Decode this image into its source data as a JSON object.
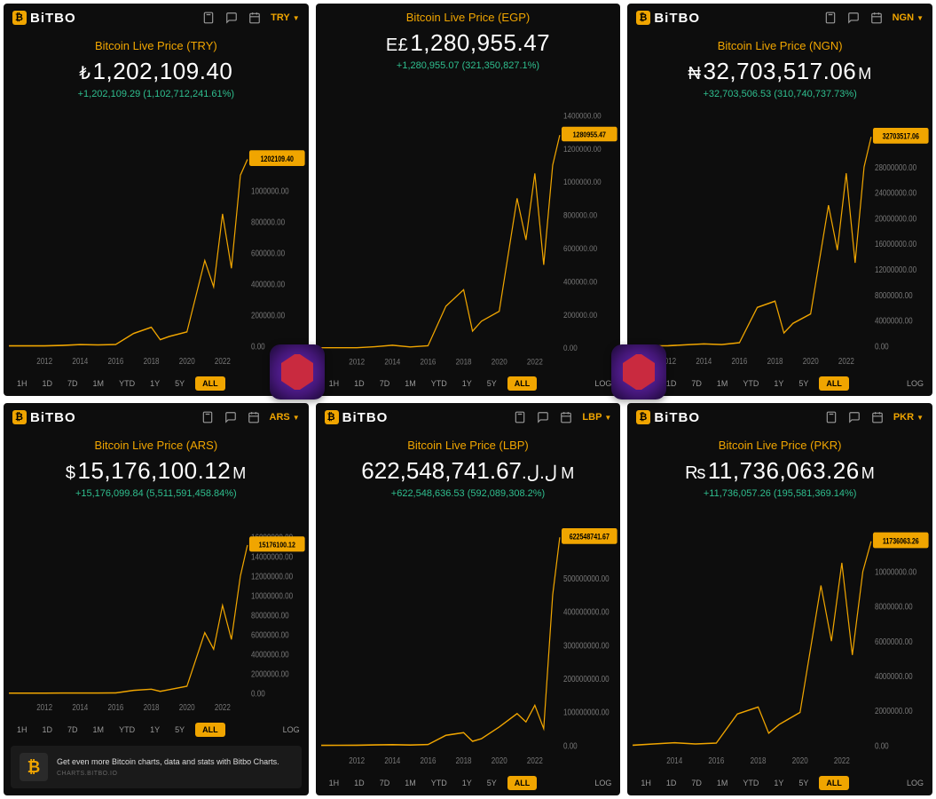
{
  "brand": "BiTBO",
  "colors": {
    "accent": "#f0a500",
    "positive": "#2fbf8f",
    "bg": "#0d0d0d",
    "line": "#f0a500",
    "tick": "#777777"
  },
  "ranges": [
    "1H",
    "1D",
    "7D",
    "1M",
    "YTD",
    "1Y",
    "5Y",
    "ALL"
  ],
  "active_range": "ALL",
  "log_label": "LOG",
  "promo": {
    "text": "Get even more Bitcoin charts, data and stats with Bitbo Charts.",
    "sub": "CHARTS.BITBO.IO"
  },
  "panels": [
    {
      "show_topbar": true,
      "currency_btn": "TRY",
      "title": "Bitcoin Live Price (TRY)",
      "symbol": "₺",
      "price": "1,202,109.40",
      "suffix": "",
      "change": "+1,202,109.29 (1,102,712,241.61%)",
      "yticks": [
        "0.00",
        "200000.00",
        "400000.00",
        "600000.00",
        "800000.00",
        "1000000.00"
      ],
      "xticks": [
        "2012",
        "2014",
        "2016",
        "2018",
        "2020",
        "2022"
      ],
      "tag_value": "1202109.40",
      "ylim": [
        0,
        1400000
      ],
      "series": [
        [
          2010,
          10
        ],
        [
          2012,
          300
        ],
        [
          2013,
          3000
        ],
        [
          2014,
          8000
        ],
        [
          2015,
          6000
        ],
        [
          2016,
          9000
        ],
        [
          2017,
          80000
        ],
        [
          2018,
          120000
        ],
        [
          2018.5,
          40000
        ],
        [
          2019,
          60000
        ],
        [
          2020,
          90000
        ],
        [
          2021,
          550000
        ],
        [
          2021.5,
          380000
        ],
        [
          2022,
          850000
        ],
        [
          2022.5,
          500000
        ],
        [
          2023,
          1100000
        ],
        [
          2023.4,
          1202109
        ]
      ],
      "show_ranges": true,
      "show_promo": false
    },
    {
      "show_topbar": false,
      "currency_btn": "",
      "title": "Bitcoin Live Price (EGP)",
      "symbol": "E£",
      "price": "1,280,955.47",
      "suffix": "",
      "change": "+1,280,955.07 (321,350,827.1%)",
      "yticks": [
        "0.00",
        "200000.00",
        "400000.00",
        "600000.00",
        "800000.00",
        "1000000.00",
        "1200000.00",
        "1400000.00"
      ],
      "xticks": [
        "2012",
        "2014",
        "2016",
        "2018",
        "2020",
        "2022"
      ],
      "tag_value": "1280955.47",
      "ylim": [
        0,
        1500000
      ],
      "series": [
        [
          2010,
          20
        ],
        [
          2012,
          300
        ],
        [
          2013,
          6000
        ],
        [
          2014,
          15000
        ],
        [
          2015,
          5000
        ],
        [
          2016,
          12000
        ],
        [
          2017,
          250000
        ],
        [
          2018,
          350000
        ],
        [
          2018.5,
          100000
        ],
        [
          2019,
          160000
        ],
        [
          2020,
          220000
        ],
        [
          2021,
          900000
        ],
        [
          2021.5,
          650000
        ],
        [
          2022,
          1050000
        ],
        [
          2022.5,
          500000
        ],
        [
          2023,
          1100000
        ],
        [
          2023.4,
          1280955
        ]
      ],
      "show_ranges": true,
      "show_promo": false
    },
    {
      "show_topbar": true,
      "currency_btn": "NGN",
      "title": "Bitcoin Live Price (NGN)",
      "symbol": "₦",
      "price": "32,703,517.06",
      "suffix": "M",
      "change": "+32,703,506.53 (310,740,737.73%)",
      "yticks": [
        "0.00",
        "4000000.00",
        "8000000.00",
        "12000000.00",
        "16000000.00",
        "20000000.00",
        "24000000.00",
        "28000000.00"
      ],
      "xticks": [
        "2012",
        "2014",
        "2016",
        "2018",
        "2020",
        "2022"
      ],
      "tag_value": "32703517.06",
      "ylim": [
        0,
        34000000
      ],
      "series": [
        [
          2010,
          500
        ],
        [
          2012,
          20000
        ],
        [
          2013,
          150000
        ],
        [
          2014,
          300000
        ],
        [
          2015,
          200000
        ],
        [
          2016,
          500000
        ],
        [
          2017,
          6000000
        ],
        [
          2018,
          7000000
        ],
        [
          2018.5,
          2000000
        ],
        [
          2019,
          3500000
        ],
        [
          2020,
          5000000
        ],
        [
          2021,
          22000000
        ],
        [
          2021.5,
          15000000
        ],
        [
          2022,
          27000000
        ],
        [
          2022.5,
          13000000
        ],
        [
          2023,
          28000000
        ],
        [
          2023.4,
          32703517
        ]
      ],
      "show_ranges": true,
      "show_promo": false
    },
    {
      "show_topbar": true,
      "currency_btn": "ARS",
      "title": "Bitcoin Live Price (ARS)",
      "symbol": "$",
      "price": "15,176,100.12",
      "suffix": "M",
      "change": "+15,176,099.84 (5,511,591,458.84%)",
      "yticks": [
        "0.00",
        "2000000.00",
        "4000000.00",
        "6000000.00",
        "8000000.00",
        "10000000.00",
        "12000000.00",
        "14000000.00",
        "16000000.00"
      ],
      "xticks": [
        "2012",
        "2014",
        "2016",
        "2018",
        "2020",
        "2022"
      ],
      "tag_value": "15176100.12",
      "ylim": [
        0,
        17000000
      ],
      "series": [
        [
          2010,
          10
        ],
        [
          2012,
          1000
        ],
        [
          2013,
          8000
        ],
        [
          2014,
          15000
        ],
        [
          2015,
          10000
        ],
        [
          2016,
          25000
        ],
        [
          2017,
          280000
        ],
        [
          2018,
          400000
        ],
        [
          2018.5,
          180000
        ],
        [
          2019,
          350000
        ],
        [
          2020,
          700000
        ],
        [
          2021,
          6200000
        ],
        [
          2021.5,
          4500000
        ],
        [
          2022,
          9000000
        ],
        [
          2022.5,
          5500000
        ],
        [
          2023,
          12000000
        ],
        [
          2023.4,
          15176100
        ]
      ],
      "show_ranges": true,
      "show_promo": true
    },
    {
      "show_topbar": true,
      "currency_btn": "LBP",
      "title": "Bitcoin Live Price (LBP)",
      "symbol": "ل.ل.",
      "price": "622,548,741.67",
      "suffix": "M",
      "change": "+622,548,636.53 (592,089,308.2%)",
      "yticks": [
        "0.00",
        "100000000.00",
        "200000000.00",
        "300000000.00",
        "400000000.00",
        "500000000.00"
      ],
      "xticks": [
        "2012",
        "2014",
        "2016",
        "2018",
        "2020",
        "2022"
      ],
      "tag_value": "622548741.67",
      "ylim": [
        0,
        650000000
      ],
      "series": [
        [
          2010,
          1000
        ],
        [
          2012,
          200000
        ],
        [
          2013,
          1500000
        ],
        [
          2014,
          2000000
        ],
        [
          2015,
          1000000
        ],
        [
          2016,
          2500000
        ],
        [
          2017,
          30000000
        ],
        [
          2018,
          38000000
        ],
        [
          2018.5,
          12000000
        ],
        [
          2019,
          20000000
        ],
        [
          2020,
          55000000
        ],
        [
          2021,
          95000000
        ],
        [
          2021.5,
          70000000
        ],
        [
          2022,
          120000000
        ],
        [
          2022.5,
          50000000
        ],
        [
          2023,
          450000000
        ],
        [
          2023.4,
          622548741
        ]
      ],
      "show_ranges": true,
      "show_promo": false
    },
    {
      "show_topbar": true,
      "currency_btn": "PKR",
      "title": "Bitcoin Live Price (PKR)",
      "symbol": "₨",
      "price": "11,736,063.26",
      "suffix": "M",
      "change": "+11,736,057.26 (195,581,369.14%)",
      "yticks": [
        "0.00",
        "2000000.00",
        "4000000.00",
        "6000000.00",
        "8000000.00",
        "10000000.00"
      ],
      "xticks": [
        "2014",
        "2016",
        "2018",
        "2020",
        "2022"
      ],
      "tag_value": "11736063.26",
      "ylim": [
        0,
        12500000
      ],
      "series": [
        [
          2012,
          5000
        ],
        [
          2013,
          80000
        ],
        [
          2014,
          150000
        ],
        [
          2015,
          80000
        ],
        [
          2016,
          130000
        ],
        [
          2017,
          1800000
        ],
        [
          2018,
          2200000
        ],
        [
          2018.5,
          700000
        ],
        [
          2019,
          1200000
        ],
        [
          2020,
          1900000
        ],
        [
          2021,
          9200000
        ],
        [
          2021.5,
          6000000
        ],
        [
          2022,
          10500000
        ],
        [
          2022.5,
          5200000
        ],
        [
          2023,
          10000000
        ],
        [
          2023.4,
          11736063
        ]
      ],
      "show_ranges": true,
      "show_promo": false
    }
  ]
}
